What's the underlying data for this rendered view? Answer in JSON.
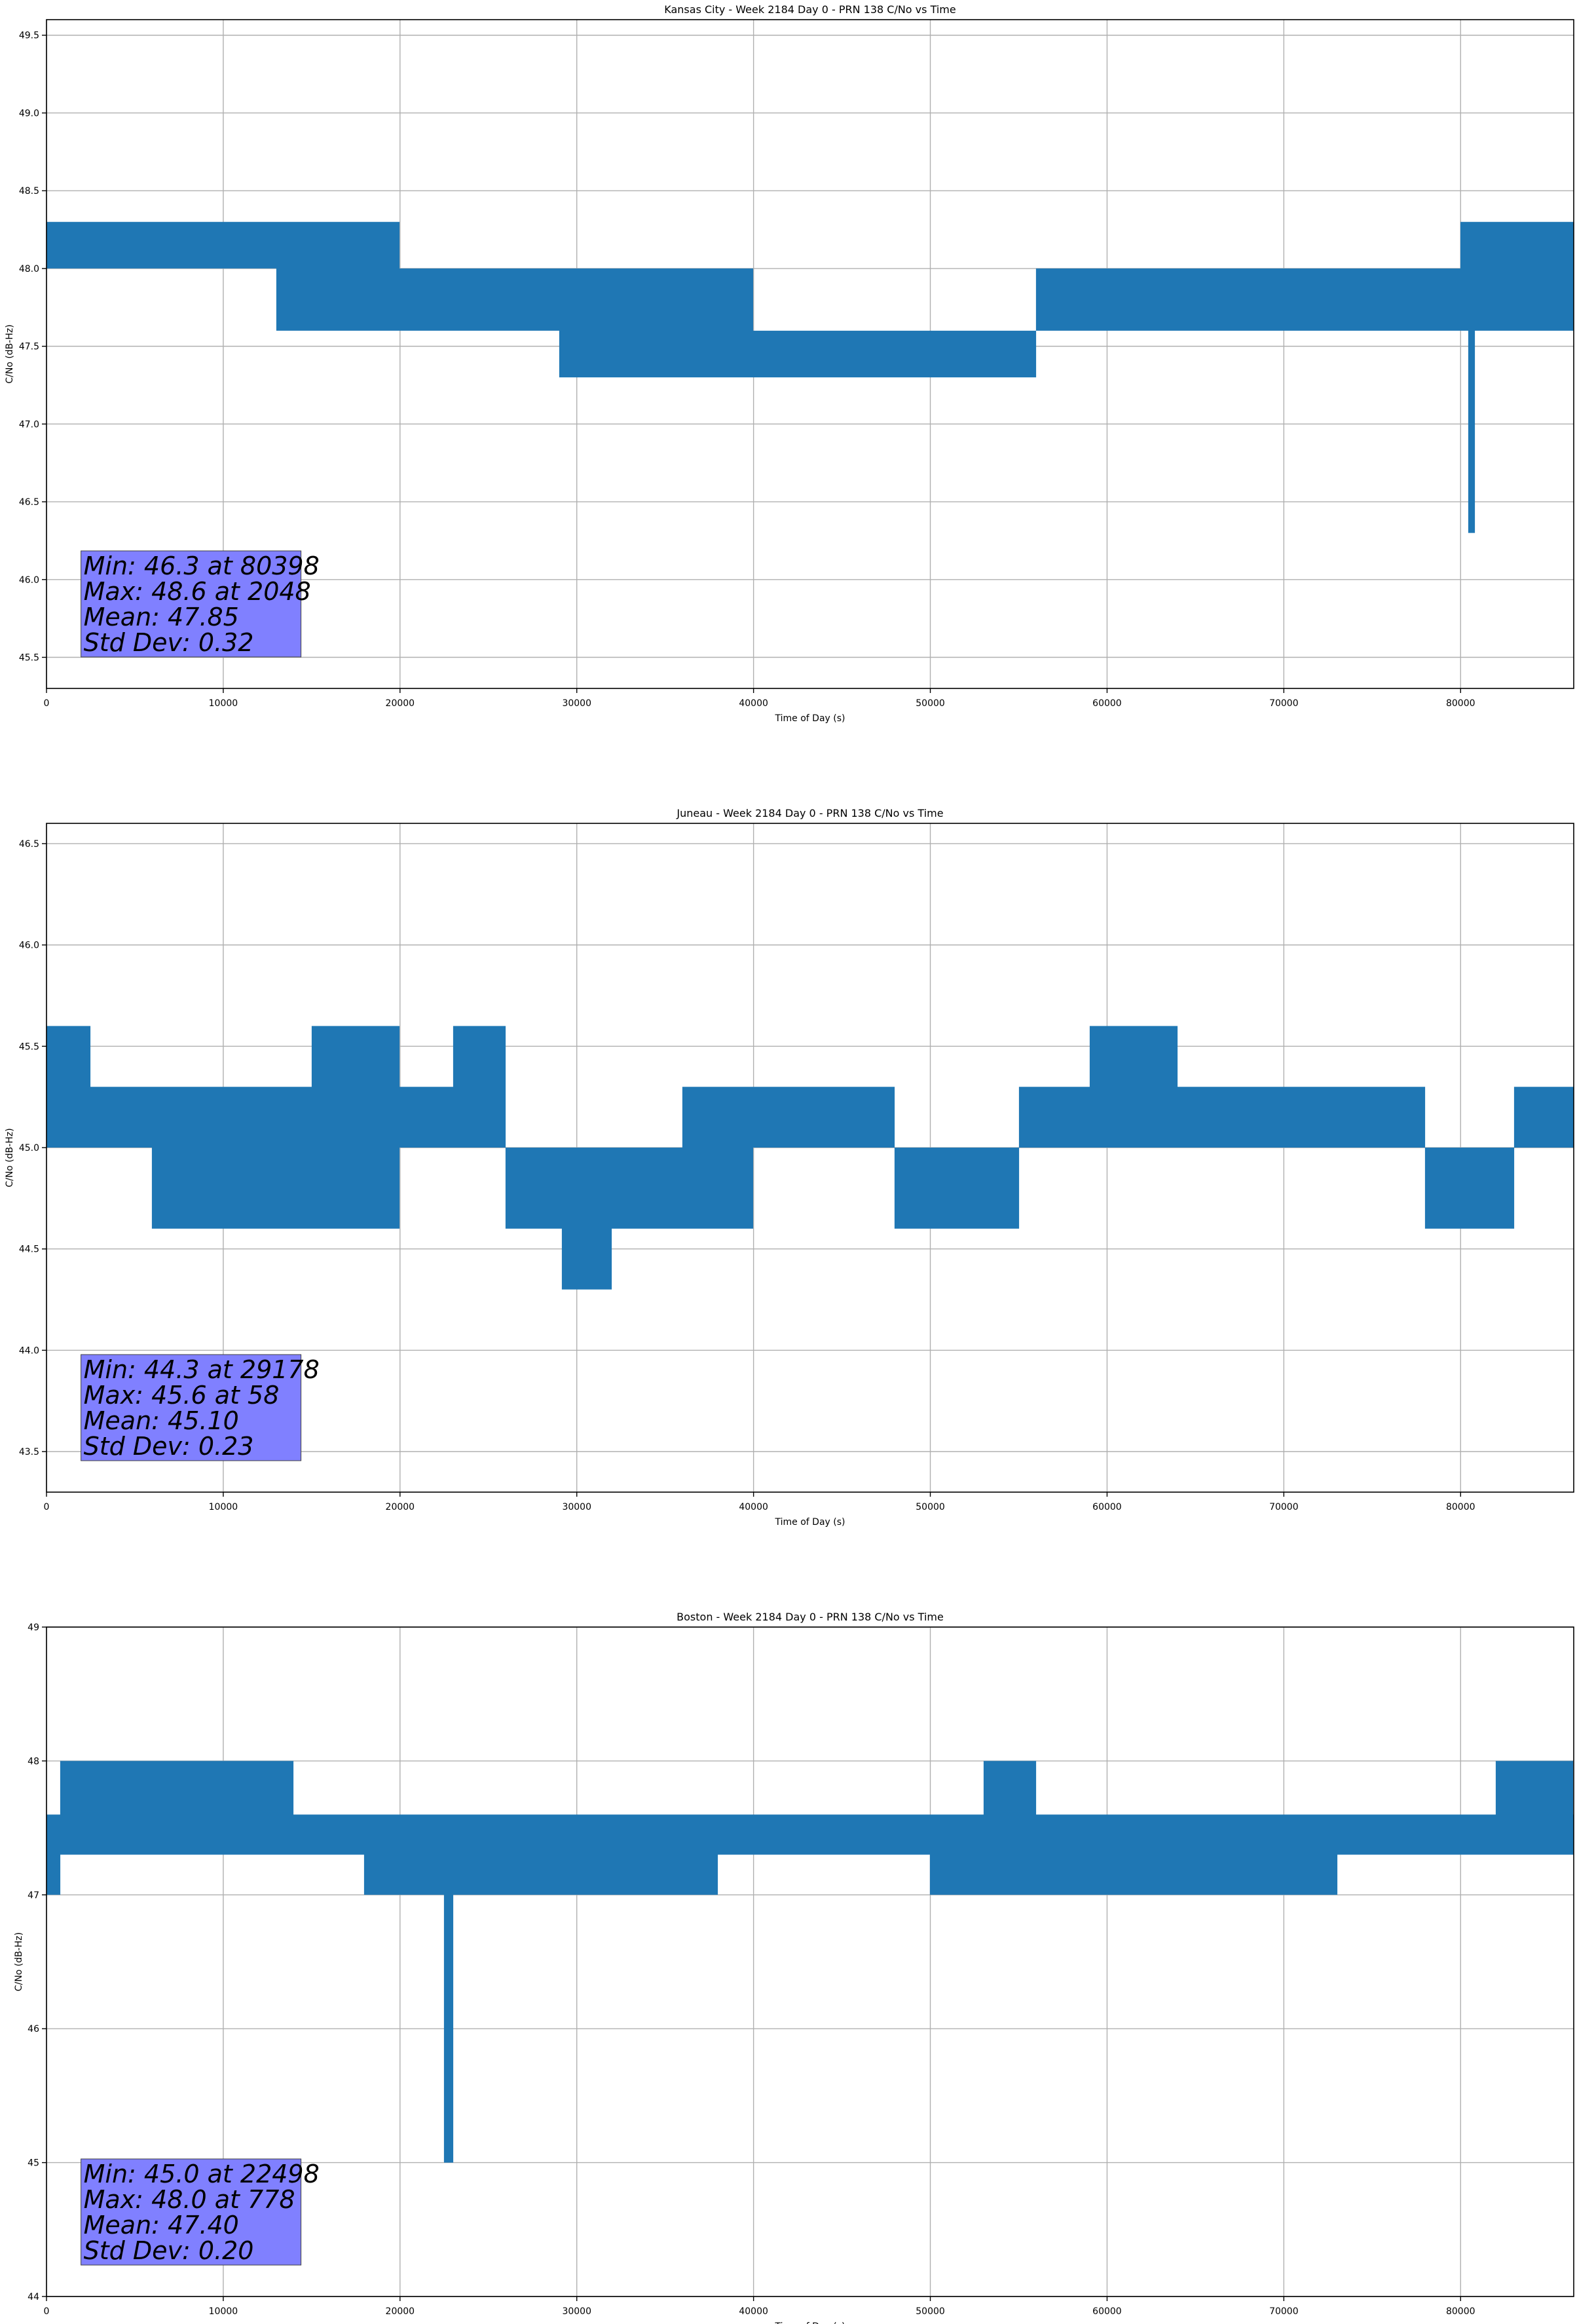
{
  "figure": {
    "colors": {
      "line": "#1f77b4",
      "stats_box": "#8080ff",
      "grid": "#b0b0b0",
      "axes": "#000000"
    }
  },
  "chart_data": [
    {
      "type": "line",
      "title": "Kansas City - Week 2184 Day 0 - PRN 138 C/No vs Time",
      "xlabel": "Time of Day (s)",
      "ylabel": "C/No (dB-Hz)",
      "xlim": [
        0,
        86400
      ],
      "ylim": [
        45.3,
        49.6
      ],
      "xticks": [
        0,
        10000,
        20000,
        30000,
        40000,
        50000,
        60000,
        70000,
        80000
      ],
      "xtick_labels": [
        "0",
        "10000",
        "20000",
        "30000",
        "40000",
        "50000",
        "60000",
        "70000",
        "80000"
      ],
      "yticks": [
        45.5,
        46.0,
        46.5,
        47.0,
        47.5,
        48.0,
        48.5,
        49.0,
        49.5
      ],
      "ytick_labels": [
        "45.5",
        "46.0",
        "46.5",
        "47.0",
        "47.5",
        "48.0",
        "48.5",
        "49.0",
        "49.5"
      ],
      "grid": true,
      "series": [
        {
          "x": [
            0,
            8000,
            11000,
            13000,
            20000,
            25000,
            28000,
            29000,
            33000,
            38000,
            40000,
            45000,
            50000,
            53000,
            55000,
            56000,
            58000,
            60000,
            62000,
            65000,
            70000,
            75000,
            78000,
            80000,
            80398,
            80800,
            83000,
            86400
          ],
          "low": [
            48.0,
            48.0,
            48.0,
            47.6,
            47.6,
            47.6,
            47.6,
            47.3,
            47.3,
            47.3,
            47.3,
            47.3,
            47.3,
            47.3,
            47.3,
            47.6,
            47.6,
            47.6,
            47.6,
            47.6,
            47.6,
            47.6,
            47.6,
            47.6,
            46.3,
            47.6,
            47.6,
            47.6
          ],
          "high": [
            48.3,
            48.3,
            48.3,
            48.3,
            48.0,
            48.0,
            48.0,
            48.0,
            48.0,
            48.0,
            47.6,
            47.6,
            47.6,
            47.6,
            47.6,
            48.0,
            48.0,
            48.0,
            48.0,
            48.0,
            48.0,
            48.0,
            48.0,
            48.3,
            48.3,
            48.3,
            48.3,
            48.3
          ]
        }
      ],
      "stats": {
        "min": "Min: 46.3 at 80398",
        "max": "Max: 48.6 at 2048",
        "mean": "Mean: 47.85",
        "std": "Std Dev: 0.32"
      }
    },
    {
      "type": "line",
      "title": "Juneau - Week 2184 Day 0 - PRN 138 C/No vs Time",
      "xlabel": "Time of Day (s)",
      "ylabel": "C/No (dB-Hz)",
      "xlim": [
        0,
        86400
      ],
      "ylim": [
        43.3,
        46.6
      ],
      "xticks": [
        0,
        10000,
        20000,
        30000,
        40000,
        50000,
        60000,
        70000,
        80000
      ],
      "xtick_labels": [
        "0",
        "10000",
        "20000",
        "30000",
        "40000",
        "50000",
        "60000",
        "70000",
        "80000"
      ],
      "yticks": [
        43.5,
        44.0,
        44.5,
        45.0,
        45.5,
        46.0,
        46.5
      ],
      "ytick_labels": [
        "43.5",
        "44.0",
        "44.5",
        "45.0",
        "45.5",
        "46.0",
        "46.5"
      ],
      "grid": true,
      "series": [
        {
          "x": [
            0,
            2500,
            6000,
            9000,
            15000,
            20000,
            23000,
            26000,
            29178,
            32000,
            36000,
            38000,
            40000,
            45000,
            48000,
            52000,
            55000,
            59000,
            62000,
            64000,
            68000,
            72000,
            75000,
            78000,
            81000,
            83000,
            86400
          ],
          "low": [
            45.0,
            45.0,
            44.6,
            44.6,
            44.6,
            45.0,
            45.0,
            44.6,
            44.3,
            44.6,
            44.6,
            44.6,
            45.0,
            45.0,
            44.6,
            44.6,
            45.0,
            45.0,
            45.0,
            45.0,
            45.0,
            45.0,
            45.0,
            44.6,
            44.6,
            45.0,
            45.0
          ],
          "high": [
            45.6,
            45.3,
            45.3,
            45.3,
            45.6,
            45.3,
            45.6,
            45.0,
            45.0,
            45.0,
            45.3,
            45.3,
            45.3,
            45.3,
            45.0,
            45.0,
            45.3,
            45.6,
            45.6,
            45.3,
            45.3,
            45.3,
            45.3,
            45.0,
            45.0,
            45.3,
            45.3
          ]
        }
      ],
      "stats": {
        "min": "Min: 44.3 at 29178",
        "max": "Max: 45.6 at 58",
        "mean": "Mean: 45.10",
        "std": "Std Dev: 0.23"
      }
    },
    {
      "type": "line",
      "title": "Boston - Week 2184 Day 0 - PRN 138 C/No vs Time",
      "xlabel": "Time of Day (s)",
      "ylabel": "C/No (dB-Hz)",
      "xlim": [
        0,
        86400
      ],
      "ylim": [
        44,
        49
      ],
      "xticks": [
        0,
        10000,
        20000,
        30000,
        40000,
        50000,
        60000,
        70000,
        80000
      ],
      "xtick_labels": [
        "0",
        "10000",
        "20000",
        "30000",
        "40000",
        "50000",
        "60000",
        "70000",
        "80000"
      ],
      "yticks": [
        44,
        45,
        46,
        47,
        48,
        49
      ],
      "ytick_labels": [
        "44",
        "45",
        "46",
        "47",
        "48",
        "49"
      ],
      "grid": true,
      "series": [
        {
          "x": [
            0,
            778,
            3000,
            10000,
            14000,
            18000,
            22000,
            22498,
            23000,
            26000,
            30000,
            38000,
            42000,
            50000,
            53000,
            56000,
            60000,
            65000,
            70000,
            73000,
            80000,
            82000,
            86400
          ],
          "low": [
            47.0,
            47.3,
            47.3,
            47.3,
            47.3,
            47.0,
            47.0,
            45.0,
            47.0,
            47.0,
            47.0,
            47.3,
            47.3,
            47.0,
            47.0,
            47.0,
            47.0,
            47.0,
            47.0,
            47.3,
            47.3,
            47.3,
            47.3
          ],
          "high": [
            47.6,
            48.0,
            48.0,
            48.0,
            47.6,
            47.6,
            47.6,
            47.6,
            47.6,
            47.6,
            47.6,
            47.6,
            47.6,
            47.6,
            48.0,
            47.6,
            47.6,
            47.6,
            47.6,
            47.6,
            47.6,
            48.0,
            47.6
          ]
        }
      ],
      "stats": {
        "min": "Min: 45.0 at 22498",
        "max": "Max: 48.0 at 778",
        "mean": "Mean: 47.40",
        "std": "Std Dev: 0.20"
      }
    }
  ]
}
